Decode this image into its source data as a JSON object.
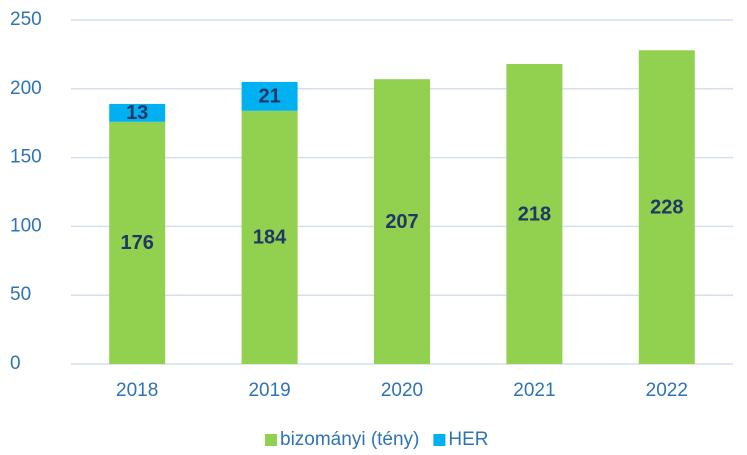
{
  "chart_data": {
    "type": "stacked_bar",
    "categories": [
      "2018",
      "2019",
      "2020",
      "2021",
      "2022"
    ],
    "series": [
      {
        "name": "bizományi (tény)",
        "color": "#92d050",
        "values": [
          176,
          184,
          207,
          218,
          228
        ]
      },
      {
        "name": "HER",
        "color": "#00b0f0",
        "values": [
          13,
          21,
          null,
          null,
          null
        ]
      }
    ],
    "ylim": [
      0,
      250
    ],
    "yticks": [
      0,
      50,
      100,
      150,
      200,
      250
    ],
    "grid": true,
    "legend": "bottom"
  }
}
